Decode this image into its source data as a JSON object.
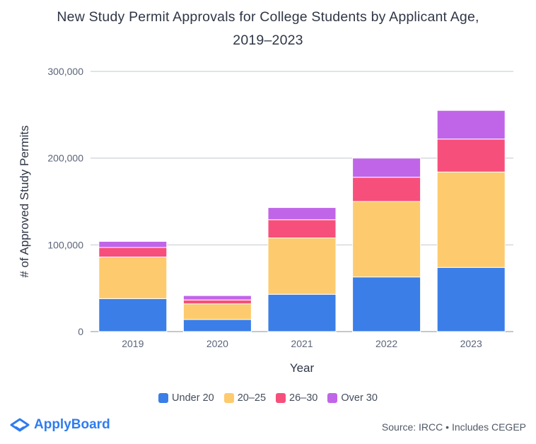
{
  "title_line1": "New Study Permit Approvals for College Students by Applicant Age,",
  "title_line2": "2019–2023",
  "chart_data": {
    "type": "bar",
    "stacked": true,
    "title": "New Study Permit Approvals for College Students by Applicant Age, 2019–2023",
    "xlabel": "Year",
    "ylabel": "# of Approved Study Permits",
    "categories": [
      "2019",
      "2020",
      "2021",
      "2022",
      "2023"
    ],
    "ylim": [
      0,
      300000
    ],
    "yticks": [
      0,
      100000,
      200000,
      300000
    ],
    "ytick_labels": [
      "0",
      "100,000",
      "200,000",
      "300,000"
    ],
    "grid": true,
    "series": [
      {
        "name": "Under 20",
        "color": "#3b7ee8",
        "values": [
          38000,
          14000,
          43000,
          63000,
          74000
        ]
      },
      {
        "name": "20–25",
        "color": "#fdcb6e",
        "values": [
          48000,
          18000,
          65000,
          87000,
          110000
        ]
      },
      {
        "name": "26–30",
        "color": "#f74f7b",
        "values": [
          11000,
          4500,
          21000,
          28000,
          38000
        ]
      },
      {
        "name": "Over 30",
        "color": "#c065e8",
        "values": [
          7000,
          5000,
          14000,
          22000,
          33000
        ]
      }
    ]
  },
  "brand": {
    "name": "ApplyBoard",
    "logo_icon": "applyboard-logo-icon",
    "color": "#2e7cf0"
  },
  "source_note": "Source: IRCC • Includes CEGEP"
}
